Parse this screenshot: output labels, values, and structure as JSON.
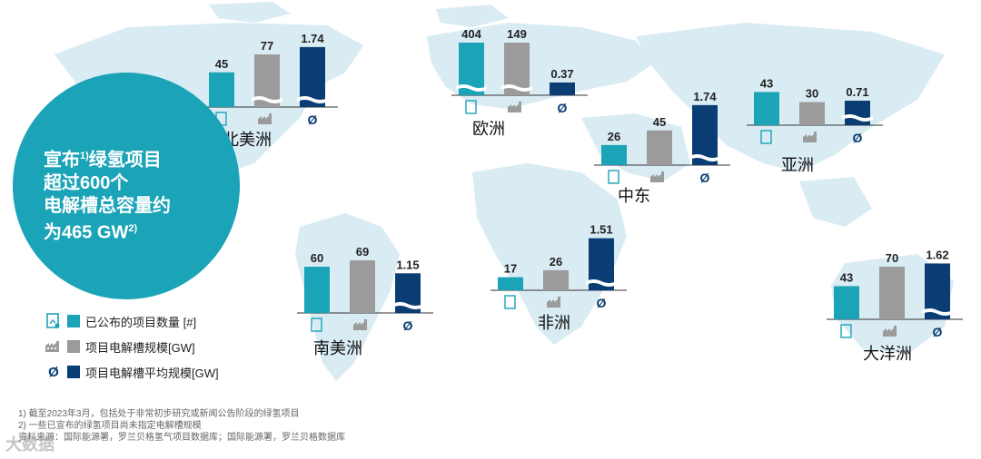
{
  "headline": {
    "line1": "宣布",
    "line1_sup": "1)",
    "line1_tail": "绿氢项目",
    "line2": "超过600个",
    "line3": "电解槽总容量约",
    "line4": "为465 GW",
    "line4_sup": "2)"
  },
  "legend": [
    {
      "icon": "project-doc-icon",
      "label": "已公布的项目数量 [#]",
      "color": "#1ba3b8"
    },
    {
      "icon": "factory-icon",
      "label": "项目电解槽规模[GW]",
      "color": "#9b9b9b"
    },
    {
      "icon": "average-icon",
      "label": "项目电解槽平均规模[GW]",
      "color": "#0a3d73"
    }
  ],
  "avg_symbol": "Ø",
  "footnotes": [
    "1) 截至2023年3月，包括处于非常初步研究或新闻公告阶段的绿氢项目",
    "2) 一些已宣布的绿氢项目尚未指定电解槽规模",
    "资料来源：国际能源署，罗兰贝格氢气项目数据库；国际能源署，罗兰贝格数据库"
  ],
  "watermark": "大数据",
  "colors": {
    "teal": "#1ba3b8",
    "gray": "#9b9b9b",
    "navy": "#0a3d73",
    "map": "#d9ebf3"
  },
  "chart_data": [
    {
      "type": "bar",
      "region": "北美洲",
      "series": [
        {
          "name": "已公布的项目数量 [#]",
          "value": 45
        },
        {
          "name": "项目电解槽规模[GW]",
          "value": 77
        },
        {
          "name": "项目电解槽平均规模[GW]",
          "value": 1.74
        }
      ],
      "labels": [
        "45",
        "77",
        "1.74"
      ]
    },
    {
      "type": "bar",
      "region": "欧洲",
      "series": [
        {
          "name": "已公布的项目数量 [#]",
          "value": 404
        },
        {
          "name": "项目电解槽规模[GW]",
          "value": 149
        },
        {
          "name": "项目电解槽平均规模[GW]",
          "value": 0.37
        }
      ],
      "labels": [
        "404",
        "149",
        "0.37"
      ]
    },
    {
      "type": "bar",
      "region": "中东",
      "series": [
        {
          "name": "已公布的项目数量 [#]",
          "value": 26
        },
        {
          "name": "项目电解槽规模[GW]",
          "value": 45
        },
        {
          "name": "项目电解槽平均规模[GW]",
          "value": 1.74
        }
      ],
      "labels": [
        "26",
        "45",
        "1.74"
      ]
    },
    {
      "type": "bar",
      "region": "亚洲",
      "series": [
        {
          "name": "已公布的项目数量 [#]",
          "value": 43
        },
        {
          "name": "项目电解槽规模[GW]",
          "value": 30
        },
        {
          "name": "项目电解槽平均规模[GW]",
          "value": 0.71
        }
      ],
      "labels": [
        "43",
        "30",
        "0.71"
      ]
    },
    {
      "type": "bar",
      "region": "南美洲",
      "series": [
        {
          "name": "已公布的项目数量 [#]",
          "value": 60
        },
        {
          "name": "项目电解槽规模[GW]",
          "value": 69
        },
        {
          "name": "项目电解槽平均规模[GW]",
          "value": 1.15
        }
      ],
      "labels": [
        "60",
        "69",
        "1.15"
      ]
    },
    {
      "type": "bar",
      "region": "非洲",
      "series": [
        {
          "name": "已公布的项目数量 [#]",
          "value": 17
        },
        {
          "name": "项目电解槽规模[GW]",
          "value": 26
        },
        {
          "name": "项目电解槽平均规模[GW]",
          "value": 1.51
        }
      ],
      "labels": [
        "17",
        "26",
        "1.51"
      ]
    },
    {
      "type": "bar",
      "region": "大洋洲",
      "series": [
        {
          "name": "已公布的项目数量 [#]",
          "value": 43
        },
        {
          "name": "项目电解槽规模[GW]",
          "value": 70
        },
        {
          "name": "项目电解槽平均规模[GW]",
          "value": 1.62
        }
      ],
      "labels": [
        "43",
        "70",
        "1.62"
      ]
    }
  ]
}
